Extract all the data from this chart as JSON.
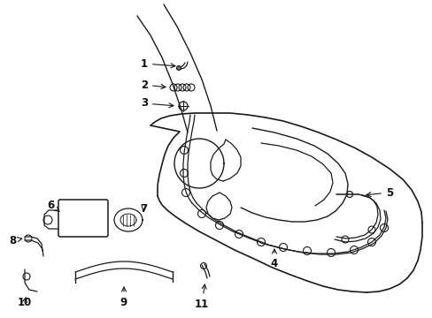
{
  "bg_color": "#ffffff",
  "line_color": "#1a1a1a",
  "figsize": [
    4.89,
    3.6
  ],
  "dpi": 100,
  "label_fontsize": 8.5
}
